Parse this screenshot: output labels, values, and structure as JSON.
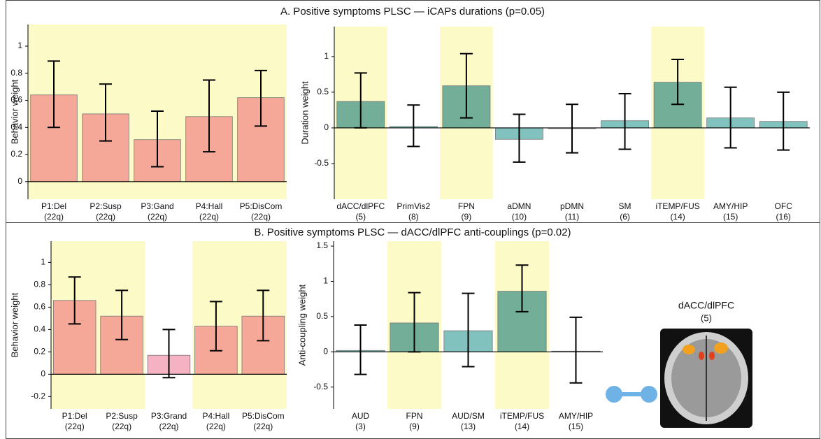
{
  "sections": [
    "A. Positive symptoms PLSC — iCAPs durations (p=0.05)",
    "B. Positive symptoms PLSC —  dACC/dlPFC anti-couplings (p=0.02)"
  ],
  "inset": {
    "label": "dACC/dlPFC",
    "sublabel": "(5)"
  },
  "chart_data": [
    {
      "type": "bar",
      "ylabel": "Behavior weight",
      "categories": [
        "P1:Del",
        "P2:Susp",
        "P3:Gand",
        "P4:Hall",
        "P5:DisCom"
      ],
      "category_notes": [
        "(22q)",
        "(22q)",
        "(22q)",
        "(22q)",
        "(22q)"
      ],
      "values": [
        0.64,
        0.5,
        0.31,
        0.48,
        0.62
      ],
      "ci_low": [
        0.4,
        0.3,
        0.11,
        0.22,
        0.41
      ],
      "ci_high": [
        0.89,
        0.72,
        0.52,
        0.75,
        0.82
      ],
      "highlight": [
        true,
        true,
        true,
        true,
        true
      ],
      "colors": [
        "#f6a898",
        "#f6a898",
        "#f6a898",
        "#f6a898",
        "#f6a898"
      ],
      "ylim": [
        -0.13,
        1.16
      ],
      "yticks": [
        0,
        0.2,
        0.4,
        0.6,
        0.8,
        1
      ]
    },
    {
      "type": "bar",
      "ylabel": "Duration weight",
      "categories": [
        "dACC/dlPFC",
        "PrimVis2",
        "FPN",
        "aDMN",
        "pDMN",
        "SM",
        "iTEMP/FUS",
        "AMY/HIP",
        "OFC"
      ],
      "category_notes": [
        "(5)",
        "(8)",
        "(9)",
        "(10)",
        "(11)",
        "(6)",
        "(14)",
        "(15)",
        "(16)"
      ],
      "values": [
        0.37,
        0.02,
        0.59,
        -0.16,
        -0.01,
        0.1,
        0.64,
        0.14,
        0.09
      ],
      "ci_low": [
        0.0,
        -0.26,
        0.14,
        -0.48,
        -0.35,
        -0.3,
        0.33,
        -0.28,
        -0.31
      ],
      "ci_high": [
        0.77,
        0.32,
        1.04,
        0.19,
        0.33,
        0.48,
        0.96,
        0.57,
        0.5
      ],
      "highlight": [
        true,
        false,
        true,
        false,
        false,
        false,
        true,
        false,
        false
      ],
      "colors": [
        "#72ae98",
        "#82c2be",
        "#72ae98",
        "#82c2be",
        "#82c2be",
        "#82c2be",
        "#72ae98",
        "#82c2be",
        "#82c2be"
      ],
      "ylim": [
        -1.0,
        1.42
      ],
      "yticks": [
        -0.5,
        0,
        0.5,
        1
      ]
    },
    {
      "type": "bar",
      "ylabel": "Behavior weight",
      "categories": [
        "P1:Del",
        "P2:Susp",
        "P3:Grand",
        "P4:Hall",
        "P5:DisCom"
      ],
      "category_notes": [
        "(22q)",
        "(22q)",
        "(22q)",
        "(22q)",
        "(22q)"
      ],
      "values": [
        0.66,
        0.52,
        0.17,
        0.43,
        0.52
      ],
      "ci_low": [
        0.45,
        0.31,
        -0.03,
        0.21,
        0.3
      ],
      "ci_high": [
        0.87,
        0.75,
        0.4,
        0.65,
        0.75
      ],
      "highlight": [
        true,
        true,
        false,
        true,
        true
      ],
      "colors": [
        "#f6a898",
        "#f6a898",
        "#f4b2c2",
        "#f6a898",
        "#f6a898"
      ],
      "ylim": [
        -0.31,
        1.19
      ],
      "yticks": [
        -0.2,
        0,
        0.2,
        0.4,
        0.6,
        0.8,
        1
      ]
    },
    {
      "type": "bar",
      "ylabel": "Anti-coupling weight",
      "categories": [
        "AUD",
        "FPN",
        "AUD/SM",
        "iTEMP/FUS",
        "AMY/HIP"
      ],
      "category_notes": [
        "(3)",
        "(9)",
        "(13)",
        "(14)",
        "(15)"
      ],
      "values": [
        0.02,
        0.41,
        0.3,
        0.86,
        0.01
      ],
      "ci_low": [
        -0.32,
        0.0,
        -0.21,
        0.57,
        -0.44
      ],
      "ci_high": [
        0.38,
        0.84,
        0.83,
        1.23,
        0.49
      ],
      "highlight": [
        false,
        true,
        false,
        true,
        false
      ],
      "colors": [
        "#82c2be",
        "#72ae98",
        "#82c2be",
        "#72ae98",
        "#82c2be"
      ],
      "ylim": [
        -0.81,
        1.57
      ],
      "yticks": [
        -0.5,
        0,
        0.5,
        1,
        1.5
      ]
    }
  ]
}
